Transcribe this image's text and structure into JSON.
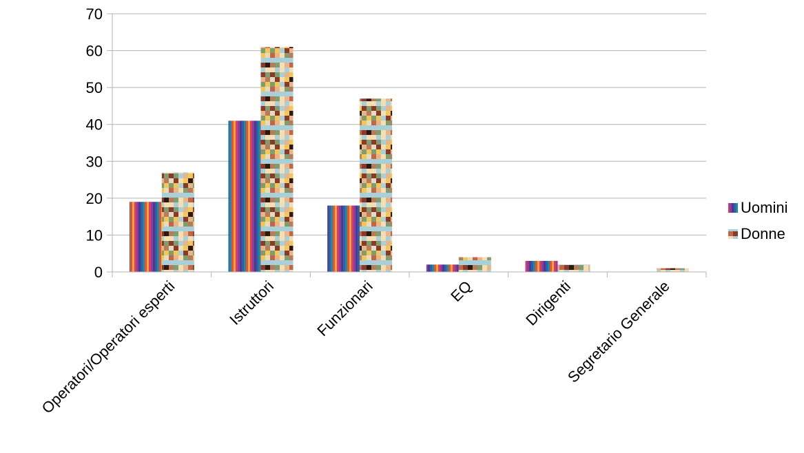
{
  "chart_data": {
    "type": "bar",
    "categories": [
      "Operatori/Operatori esperti",
      "Istruttori",
      "Funzionari",
      "EQ",
      "Dirigenti",
      "Segretario Generale"
    ],
    "series": [
      {
        "name": "Uomini",
        "values": [
          19,
          41,
          18,
          2,
          3,
          0
        ]
      },
      {
        "name": "Donne",
        "values": [
          27,
          61,
          47,
          4,
          2,
          1
        ]
      }
    ],
    "ylim": [
      0,
      70
    ],
    "yticks": [
      0,
      10,
      20,
      30,
      40,
      50,
      60,
      70
    ],
    "grid": true,
    "legend_position": "right",
    "colors": {
      "stripes": [
        "#e8542a",
        "#f2a33a",
        "#d93a6a",
        "#8a3f9e",
        "#4b3a8e",
        "#2e5fa8",
        "#1f8aa6"
      ],
      "mosaic": [
        "#f5deb3",
        "#e8b48a",
        "#c0674a",
        "#8b3a2a",
        "#2a1a12",
        "#a9cfd9",
        "#e2dcc2",
        "#f1c75a",
        "#b87c5a",
        "#7f9d6f"
      ],
      "grid": "#b3b3b3",
      "axis": "#b3b3b3"
    }
  }
}
